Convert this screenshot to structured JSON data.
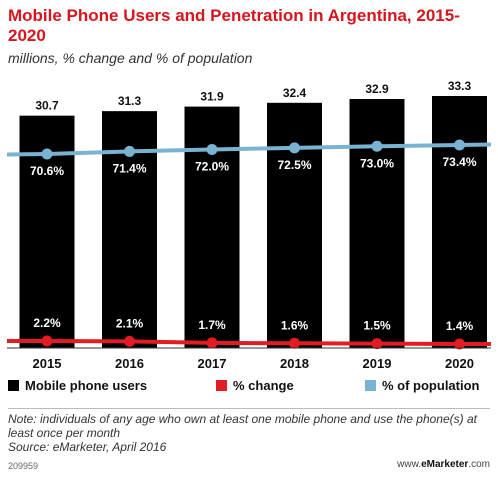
{
  "chart_data": {
    "type": "bar",
    "title": "Mobile Phone Users and Penetration in Argentina, 2015-2020",
    "subtitle": "millions, % change and % of population",
    "categories": [
      "2015",
      "2016",
      "2017",
      "2018",
      "2019",
      "2020"
    ],
    "series": [
      {
        "name": "Mobile phone users",
        "type": "bar",
        "values": [
          30.7,
          31.3,
          31.9,
          32.4,
          32.9,
          33.3
        ],
        "labels": [
          "30.7",
          "31.3",
          "31.9",
          "32.4",
          "32.9",
          "33.3"
        ],
        "color": "#000000"
      },
      {
        "name": "% change",
        "type": "line",
        "values": [
          2.2,
          2.1,
          1.7,
          1.6,
          1.5,
          1.4
        ],
        "labels": [
          "2.2%",
          "2.1%",
          "1.7%",
          "1.6%",
          "1.5%",
          "1.4%"
        ],
        "color": "#e31b23"
      },
      {
        "name": "% of population",
        "type": "line",
        "values": [
          70.6,
          71.4,
          72.0,
          72.5,
          73.0,
          73.4
        ],
        "labels": [
          "70.6%",
          "71.4%",
          "72.0%",
          "72.5%",
          "73.0%",
          "73.4%"
        ],
        "color": "#78b4d2"
      }
    ],
    "legend_position": "bottom",
    "grid": false
  },
  "note": "Note: individuals of any age who own at least one mobile phone and use the phone(s) at least once per month",
  "source": "Source: eMarketer, April 2016",
  "footer": {
    "id": "209959",
    "site_prefix": "www.",
    "site_brand": "eMarketer",
    "site_suffix": ".com"
  }
}
